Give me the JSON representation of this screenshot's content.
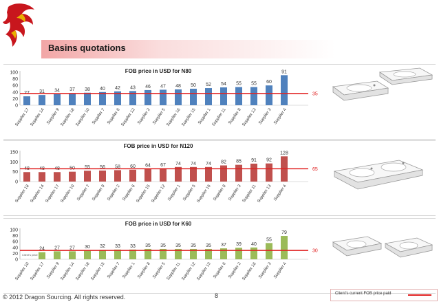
{
  "slide": {
    "title": "Basins quotations",
    "copyright": "© 2012 Dragon Sourcing. All rights reserved.",
    "page_number": "8",
    "legend_label": "Client's current FOB price paid"
  },
  "colors": {
    "title_gradient": "#f2a6a6",
    "n80_bar": "#4f81bd",
    "n120_bar": "#c0504d",
    "k60_bar": "#9bbb59",
    "target_line": "#e02020"
  },
  "chart_data": [
    {
      "id": "n80",
      "type": "bar",
      "title": "FOB price in USD for N80",
      "categories": [
        "Supplier 17",
        "Supplier 14",
        "Supplier 9",
        "Supplier 18",
        "Supplier 10",
        "Supplier 7",
        "Supplier 6",
        "Supplier 12",
        "Supplier 2",
        "Supplier 5",
        "Supplier 16",
        "Supplier 15",
        "Supplier 1",
        "Supplier 11",
        "Supplier 8",
        "Supplier 13",
        "Supplier 3",
        "Supplier 4"
      ],
      "values": [
        27,
        31,
        34,
        37,
        38,
        40,
        42,
        43,
        46,
        47,
        48,
        50,
        52,
        54,
        55,
        55,
        60,
        91
      ],
      "yticks": [
        0,
        20,
        40,
        60,
        80,
        100
      ],
      "ylim": [
        0,
        100
      ],
      "reference_value": 35,
      "reference_label": "35",
      "bar_color": "#4f81bd"
    },
    {
      "id": "n120",
      "type": "bar",
      "title": "FOB price in USD for N120",
      "categories": [
        "Supplier 18",
        "Supplier 14",
        "Supplier 17",
        "Supplier 10",
        "Supplier 7",
        "Supplier 9",
        "Supplier 2",
        "Supplier 6",
        "Supplier 15",
        "Supplier 12",
        "Supplier 1",
        "Supplier 5",
        "Supplier 16",
        "Supplier 8",
        "Supplier 3",
        "Supplier 11",
        "Supplier 13",
        "Supplier 4"
      ],
      "values": [
        48,
        48,
        48,
        50,
        55,
        56,
        58,
        60,
        64,
        67,
        74,
        74,
        74,
        82,
        85,
        91,
        92,
        128
      ],
      "yticks": [
        0,
        50,
        100,
        150
      ],
      "ylim": [
        0,
        150
      ],
      "reference_value": 65,
      "reference_label": "65",
      "bar_color": "#c0504d"
    },
    {
      "id": "k60",
      "type": "bar",
      "title": "FOB price in USD for K60",
      "categories": [
        "Supplier 10",
        "Supplier 17",
        "Supplier 9",
        "Supplier 14",
        "Supplier 18",
        "Supplier 15",
        "Supplier 7",
        "Supplier 1",
        "Supplier 8",
        "Supplier 5",
        "Supplier 11",
        "Supplier 12",
        "Supplier 13",
        "Supplier 6",
        "Supplier 2",
        "Supplier 16",
        "Supplier 3",
        "Supplier 4"
      ],
      "values": [
        0,
        24,
        27,
        27,
        30,
        32,
        33,
        33,
        35,
        35,
        35,
        35,
        35,
        37,
        39,
        40,
        55,
        79
      ],
      "yticks": [
        0,
        20,
        40,
        60,
        80,
        100
      ],
      "ylim": [
        0,
        100
      ],
      "reference_value": 30,
      "reference_label": "30",
      "bar_color": "#9bbb59",
      "first_bar_note": "Client's price"
    }
  ]
}
